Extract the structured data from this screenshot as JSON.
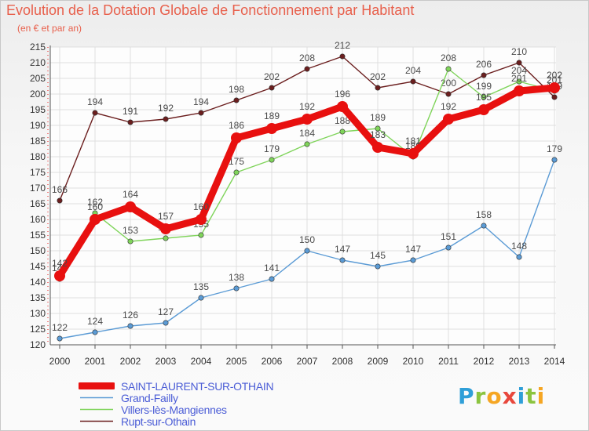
{
  "chart_data": {
    "type": "line",
    "title": "Evolution de la Dotation Globale de Fonctionnement par Habitant",
    "subtitle": "(en € et par an)",
    "xlabel": "",
    "ylabel": "",
    "ylim": [
      120,
      215
    ],
    "yticks": [
      120,
      125,
      130,
      135,
      140,
      145,
      150,
      155,
      160,
      165,
      170,
      175,
      180,
      185,
      190,
      195,
      200,
      205,
      210,
      215
    ],
    "categories": [
      "2000",
      "2001",
      "2002",
      "2003",
      "2004",
      "2005",
      "2006",
      "2007",
      "2008",
      "2009",
      "2010",
      "2011",
      "2012",
      "2013",
      "2014"
    ],
    "grid": true,
    "legend_position": "bottom-left",
    "series": [
      {
        "name": "Rupt-sur-Othain",
        "color": "#6b1e1e",
        "values": [
          166,
          194,
          191,
          192,
          194,
          198,
          202,
          208,
          212,
          202,
          204,
          200,
          206,
          210,
          199
        ],
        "labels": [
          "166",
          "194",
          "191",
          "192",
          "194",
          "198",
          "202",
          "208",
          "212",
          "202",
          "204",
          "200",
          "206",
          "210",
          "199"
        ]
      },
      {
        "name": "Villers-lès-Mangiennes",
        "color": "#7fd45a",
        "values": [
          141,
          162,
          153,
          154,
          155,
          175,
          179,
          184,
          188,
          189,
          180,
          208,
          199,
          204,
          201
        ],
        "labels": [
          "141",
          "162",
          "153",
          "154",
          "155",
          "175",
          "179",
          "184",
          "188",
          "189",
          "180",
          "208",
          "199",
          "204",
          "201"
        ]
      },
      {
        "name": "Grand-Failly",
        "color": "#5b9bd5",
        "values": [
          122,
          124,
          126,
          127,
          135,
          138,
          141,
          150,
          147,
          145,
          147,
          151,
          158,
          148,
          179
        ],
        "labels": [
          "122",
          "124",
          "126",
          "127",
          "135",
          "138",
          "141",
          "150",
          "147",
          "145",
          "147",
          "151",
          "158",
          "148",
          "179"
        ]
      },
      {
        "name": "SAINT-LAURENT-SUR-OTHAIN",
        "color": "#e8100f",
        "values": [
          142,
          160,
          164,
          157,
          160,
          186,
          189,
          192,
          196,
          183,
          181,
          192,
          195,
          201,
          202
        ],
        "labels": [
          "142",
          "160",
          "164",
          "157",
          "160",
          "186",
          "189",
          "192",
          "196",
          "183",
          "181",
          "192",
          "195",
          "201",
          "202"
        ]
      }
    ]
  },
  "legend": {
    "items": [
      {
        "label": "SAINT-LAURENT-SUR-OTHAIN",
        "color": "#e8100f",
        "thick": true
      },
      {
        "label": "Grand-Failly",
        "color": "#5b9bd5",
        "thick": false
      },
      {
        "label": "Villers-lès-Mangiennes",
        "color": "#7fd45a",
        "thick": false
      },
      {
        "label": "Rupt-sur-Othain",
        "color": "#6b1e1e",
        "thick": false
      }
    ]
  },
  "logo": {
    "letters": [
      "P",
      "r",
      "o",
      "x",
      "i",
      "t",
      "i"
    ],
    "colors": [
      "#2f9fd8",
      "#8bc43f",
      "#f5a623",
      "#e8473c",
      "#2f9fd8",
      "#8bc43f",
      "#f5a623"
    ]
  }
}
